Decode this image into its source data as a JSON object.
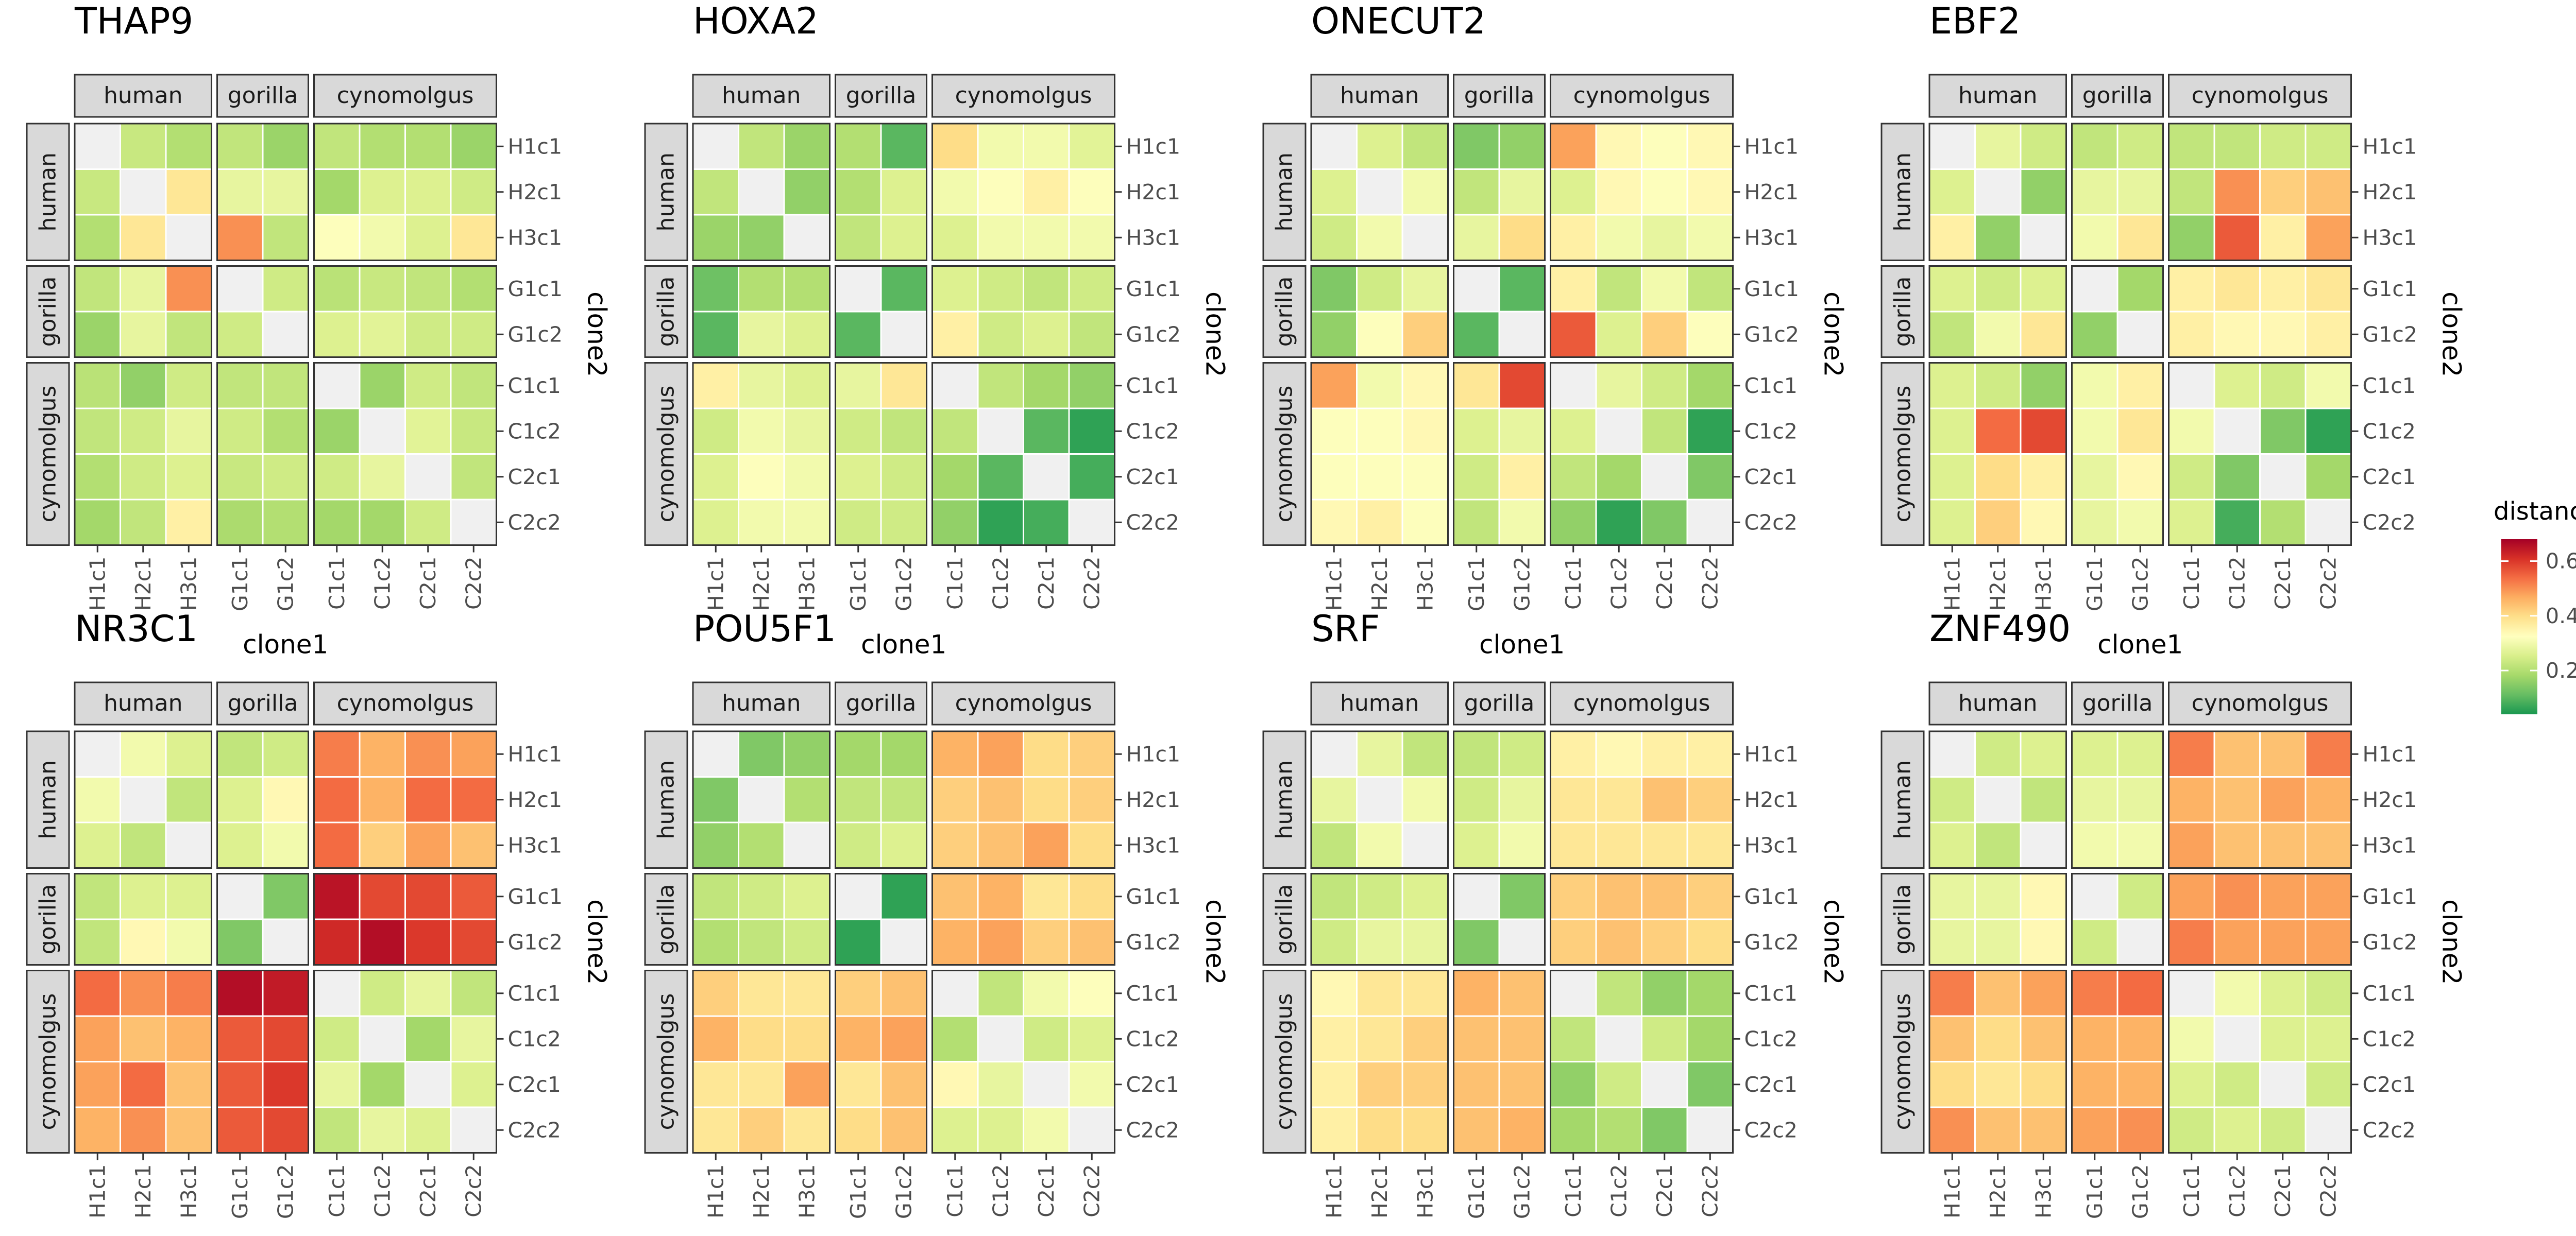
{
  "figure": {
    "xlabel": "clone1",
    "ylabel": "clone2",
    "strip_labels": [
      "human",
      "gorilla",
      "cynomolgus"
    ],
    "groups": [
      3,
      2,
      4
    ]
  },
  "legend": {
    "title": "distance",
    "ticks": [
      0.2,
      0.4,
      0.6
    ],
    "tick_labels": [
      "0.2",
      "0.4",
      "0.6"
    ],
    "range": [
      0.04,
      0.68
    ],
    "colors": [
      "#1a9850",
      "#66bd63",
      "#a6d96a",
      "#d9ef8b",
      "#ffffbf",
      "#fee08b",
      "#fdae61",
      "#f46d43",
      "#d73027",
      "#a50026"
    ],
    "diagonal_color": "#f0f0f0"
  },
  "chart_data": {
    "type": "heatmap",
    "clones": [
      "H1c1",
      "H2c1",
      "H3c1",
      "G1c1",
      "G1c2",
      "C1c1",
      "C1c2",
      "C2c1",
      "C2c2"
    ],
    "panels": [
      {
        "title": "THAP9",
        "matrix": [
          [
            0,
            0.23,
            0.2,
            0.22,
            0.17,
            0.22,
            0.2,
            0.2,
            0.17
          ],
          [
            0.23,
            0,
            0.38,
            0.28,
            0.28,
            0.18,
            0.26,
            0.26,
            0.24
          ],
          [
            0.2,
            0.38,
            0,
            0.5,
            0.22,
            0.32,
            0.3,
            0.26,
            0.38
          ],
          [
            0.22,
            0.28,
            0.5,
            0,
            0.24,
            0.21,
            0.23,
            0.22,
            0.2
          ],
          [
            0.17,
            0.28,
            0.22,
            0.24,
            0,
            0.26,
            0.27,
            0.24,
            0.24
          ],
          [
            0.21,
            0.16,
            0.24,
            0.22,
            0.22,
            0,
            0.17,
            0.24,
            0.22
          ],
          [
            0.22,
            0.24,
            0.28,
            0.24,
            0.2,
            0.17,
            0,
            0.27,
            0.23
          ],
          [
            0.2,
            0.24,
            0.26,
            0.23,
            0.24,
            0.24,
            0.28,
            0,
            0.22
          ],
          [
            0.18,
            0.22,
            0.36,
            0.19,
            0.2,
            0.18,
            0.18,
            0.24,
            0
          ]
        ]
      },
      {
        "title": "HOXA2",
        "matrix": [
          [
            0,
            0.22,
            0.17,
            0.2,
            0.1,
            0.4,
            0.3,
            0.3,
            0.27
          ],
          [
            0.22,
            0,
            0.16,
            0.2,
            0.26,
            0.3,
            0.32,
            0.36,
            0.32
          ],
          [
            0.17,
            0.16,
            0,
            0.22,
            0.26,
            0.26,
            0.3,
            0.3,
            0.3
          ],
          [
            0.12,
            0.2,
            0.2,
            0,
            0.1,
            0.26,
            0.24,
            0.22,
            0.24
          ],
          [
            0.1,
            0.28,
            0.26,
            0.1,
            0,
            0.36,
            0.24,
            0.26,
            0.22
          ],
          [
            0.36,
            0.28,
            0.26,
            0.28,
            0.38,
            0,
            0.22,
            0.18,
            0.16
          ],
          [
            0.24,
            0.3,
            0.28,
            0.24,
            0.22,
            0.22,
            0,
            0.1,
            0.06
          ],
          [
            0.26,
            0.32,
            0.3,
            0.26,
            0.24,
            0.18,
            0.1,
            0,
            0.08
          ],
          [
            0.26,
            0.3,
            0.3,
            0.24,
            0.24,
            0.16,
            0.06,
            0.08,
            0
          ]
        ]
      },
      {
        "title": "ONECUT2",
        "matrix": [
          [
            0,
            0.26,
            0.22,
            0.14,
            0.16,
            0.48,
            0.34,
            0.32,
            0.34
          ],
          [
            0.26,
            0,
            0.3,
            0.22,
            0.28,
            0.26,
            0.34,
            0.32,
            0.34
          ],
          [
            0.24,
            0.3,
            0,
            0.28,
            0.4,
            0.36,
            0.3,
            0.28,
            0.3
          ],
          [
            0.14,
            0.24,
            0.28,
            0,
            0.1,
            0.36,
            0.22,
            0.3,
            0.22
          ],
          [
            0.16,
            0.32,
            0.42,
            0.1,
            0,
            0.56,
            0.26,
            0.42,
            0.32
          ],
          [
            0.48,
            0.3,
            0.34,
            0.38,
            0.58,
            0,
            0.28,
            0.24,
            0.18
          ],
          [
            0.32,
            0.32,
            0.34,
            0.26,
            0.28,
            0.26,
            0,
            0.22,
            0.06
          ],
          [
            0.32,
            0.32,
            0.32,
            0.24,
            0.36,
            0.22,
            0.18,
            0,
            0.14
          ],
          [
            0.34,
            0.36,
            0.32,
            0.22,
            0.3,
            0.16,
            0.06,
            0.14,
            0
          ]
        ]
      },
      {
        "title": "EBF2",
        "matrix": [
          [
            0,
            0.28,
            0.24,
            0.22,
            0.24,
            0.22,
            0.22,
            0.24,
            0.24
          ],
          [
            0.26,
            0,
            0.16,
            0.28,
            0.28,
            0.22,
            0.5,
            0.42,
            0.44
          ],
          [
            0.36,
            0.16,
            0,
            0.3,
            0.38,
            0.16,
            0.56,
            0.36,
            0.48
          ],
          [
            0.26,
            0.24,
            0.26,
            0,
            0.18,
            0.36,
            0.38,
            0.36,
            0.38
          ],
          [
            0.22,
            0.3,
            0.38,
            0.16,
            0,
            0.36,
            0.34,
            0.34,
            0.36
          ],
          [
            0.26,
            0.24,
            0.16,
            0.3,
            0.36,
            0,
            0.26,
            0.24,
            0.3
          ],
          [
            0.26,
            0.54,
            0.58,
            0.3,
            0.38,
            0.3,
            0,
            0.14,
            0.06
          ],
          [
            0.26,
            0.4,
            0.36,
            0.28,
            0.34,
            0.24,
            0.14,
            0,
            0.18
          ],
          [
            0.26,
            0.42,
            0.34,
            0.28,
            0.3,
            0.26,
            0.08,
            0.2,
            0
          ]
        ]
      },
      {
        "title": "NR3C1",
        "matrix": [
          [
            0,
            0.3,
            0.26,
            0.22,
            0.24,
            0.52,
            0.46,
            0.5,
            0.48
          ],
          [
            0.3,
            0,
            0.22,
            0.26,
            0.34,
            0.54,
            0.46,
            0.54,
            0.54
          ],
          [
            0.26,
            0.22,
            0,
            0.26,
            0.3,
            0.54,
            0.42,
            0.48,
            0.44
          ],
          [
            0.22,
            0.26,
            0.26,
            0,
            0.14,
            0.65,
            0.58,
            0.58,
            0.56
          ],
          [
            0.22,
            0.34,
            0.3,
            0.14,
            0,
            0.62,
            0.66,
            0.6,
            0.58
          ],
          [
            0.54,
            0.5,
            0.52,
            0.66,
            0.64,
            0,
            0.24,
            0.28,
            0.22
          ],
          [
            0.48,
            0.44,
            0.46,
            0.56,
            0.58,
            0.24,
            0,
            0.18,
            0.28
          ],
          [
            0.48,
            0.54,
            0.44,
            0.56,
            0.6,
            0.28,
            0.18,
            0,
            0.26
          ],
          [
            0.46,
            0.5,
            0.44,
            0.56,
            0.58,
            0.22,
            0.28,
            0.26,
            0
          ]
        ]
      },
      {
        "title": "POU5F1",
        "matrix": [
          [
            0,
            0.14,
            0.16,
            0.18,
            0.18,
            0.46,
            0.48,
            0.4,
            0.42
          ],
          [
            0.14,
            0,
            0.2,
            0.22,
            0.22,
            0.42,
            0.44,
            0.4,
            0.42
          ],
          [
            0.16,
            0.2,
            0,
            0.24,
            0.26,
            0.42,
            0.44,
            0.48,
            0.4
          ],
          [
            0.22,
            0.24,
            0.26,
            0,
            0.06,
            0.44,
            0.46,
            0.38,
            0.4
          ],
          [
            0.2,
            0.22,
            0.24,
            0.06,
            0,
            0.46,
            0.48,
            0.42,
            0.44
          ],
          [
            0.42,
            0.38,
            0.38,
            0.42,
            0.44,
            0,
            0.22,
            0.3,
            0.32
          ],
          [
            0.46,
            0.4,
            0.4,
            0.46,
            0.48,
            0.2,
            0,
            0.24,
            0.26
          ],
          [
            0.38,
            0.38,
            0.48,
            0.38,
            0.44,
            0.34,
            0.28,
            0,
            0.3
          ],
          [
            0.38,
            0.42,
            0.38,
            0.4,
            0.44,
            0.26,
            0.26,
            0.3,
            0
          ]
        ]
      },
      {
        "title": "SRF",
        "matrix": [
          [
            0,
            0.28,
            0.22,
            0.22,
            0.24,
            0.36,
            0.34,
            0.36,
            0.36
          ],
          [
            0.28,
            0,
            0.3,
            0.24,
            0.28,
            0.38,
            0.38,
            0.44,
            0.42
          ],
          [
            0.22,
            0.3,
            0,
            0.26,
            0.3,
            0.38,
            0.38,
            0.38,
            0.38
          ],
          [
            0.22,
            0.24,
            0.26,
            0,
            0.14,
            0.42,
            0.44,
            0.44,
            0.42
          ],
          [
            0.24,
            0.28,
            0.28,
            0.14,
            0,
            0.42,
            0.44,
            0.42,
            0.4
          ],
          [
            0.34,
            0.38,
            0.38,
            0.46,
            0.44,
            0,
            0.22,
            0.16,
            0.18
          ],
          [
            0.36,
            0.38,
            0.42,
            0.44,
            0.44,
            0.22,
            0,
            0.24,
            0.18
          ],
          [
            0.36,
            0.42,
            0.42,
            0.44,
            0.44,
            0.16,
            0.24,
            0,
            0.14
          ],
          [
            0.36,
            0.4,
            0.4,
            0.44,
            0.46,
            0.18,
            0.2,
            0.14,
            0
          ]
        ]
      },
      {
        "title": "ZNF490",
        "matrix": [
          [
            0,
            0.24,
            0.26,
            0.26,
            0.26,
            0.52,
            0.44,
            0.44,
            0.52
          ],
          [
            0.24,
            0,
            0.22,
            0.28,
            0.28,
            0.46,
            0.44,
            0.48,
            0.46
          ],
          [
            0.26,
            0.22,
            0,
            0.3,
            0.3,
            0.48,
            0.44,
            0.44,
            0.44
          ],
          [
            0.28,
            0.28,
            0.34,
            0,
            0.24,
            0.48,
            0.5,
            0.48,
            0.48
          ],
          [
            0.28,
            0.28,
            0.34,
            0.24,
            0,
            0.52,
            0.48,
            0.48,
            0.48
          ],
          [
            0.52,
            0.44,
            0.48,
            0.52,
            0.54,
            0,
            0.3,
            0.26,
            0.24
          ],
          [
            0.44,
            0.4,
            0.44,
            0.46,
            0.46,
            0.3,
            0,
            0.26,
            0.26
          ],
          [
            0.4,
            0.38,
            0.4,
            0.46,
            0.46,
            0.26,
            0.24,
            0,
            0.24
          ],
          [
            0.5,
            0.44,
            0.44,
            0.48,
            0.5,
            0.24,
            0.26,
            0.24,
            0
          ]
        ]
      }
    ]
  }
}
